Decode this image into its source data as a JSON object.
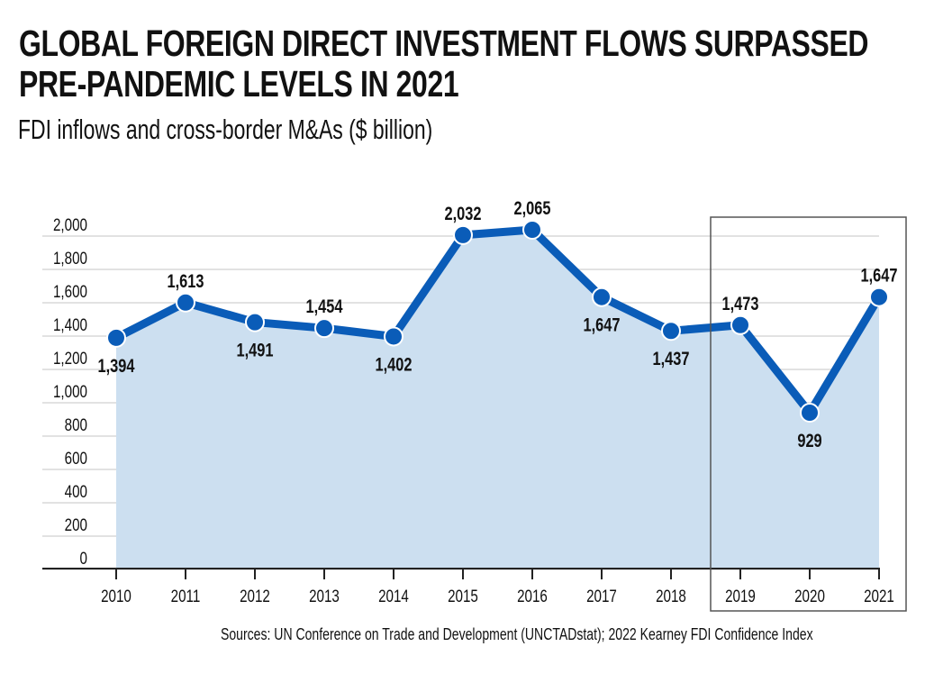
{
  "header": {
    "title_line1": "GLOBAL FOREIGN DIRECT INVESTMENT FLOWS SURPASSED",
    "title_line2": "PRE-PANDEMIC LEVELS IN 2021",
    "subtitle": "FDI inflows and cross-border M&As ($ billion)"
  },
  "source": "Sources: UN Conference on Trade and Development (UNCTADstat); 2022 Kearney FDI Confidence Index",
  "chart_data": {
    "type": "area",
    "title": "GLOBAL FOREIGN DIRECT INVESTMENT FLOWS SURPASSED PRE-PANDEMIC LEVELS IN 2021",
    "subtitle": "FDI inflows and cross-border M&As ($ billion)",
    "xlabel": "",
    "ylabel": "",
    "categories": [
      "2010",
      "2011",
      "2012",
      "2013",
      "2014",
      "2015",
      "2016",
      "2017",
      "2018",
      "2019",
      "2020",
      "2021"
    ],
    "series": [
      {
        "name": "FDI inflows and cross-border M&As",
        "values": [
          1394,
          1613,
          1491,
          1454,
          1402,
          2032,
          2065,
          1647,
          1437,
          1473,
          929,
          1647
        ],
        "labels": [
          "1,394",
          "1,613",
          "1,491",
          "1,454",
          "1,402",
          "2,032",
          "2,065",
          "1,647",
          "1,437",
          "1,473",
          "929",
          "1,647"
        ],
        "label_positions": [
          "below",
          "above",
          "below",
          "above",
          "below",
          "above",
          "above",
          "below",
          "below",
          "above",
          "below",
          "above"
        ]
      }
    ],
    "yticks": [
      "2,000",
      "1,800",
      "1,600",
      "1,400",
      "1,200",
      "1,000",
      "800",
      "600",
      "400",
      "200",
      "0"
    ],
    "ylim": [
      0,
      2000
    ],
    "grid": true,
    "highlight": {
      "from": "2019",
      "to": "2021"
    },
    "colors": {
      "line": "#0a5cb8",
      "fill": "#ccdff0",
      "grid": "#d9d9d9",
      "axis": "#222222",
      "highlight_box": "#555555"
    }
  }
}
